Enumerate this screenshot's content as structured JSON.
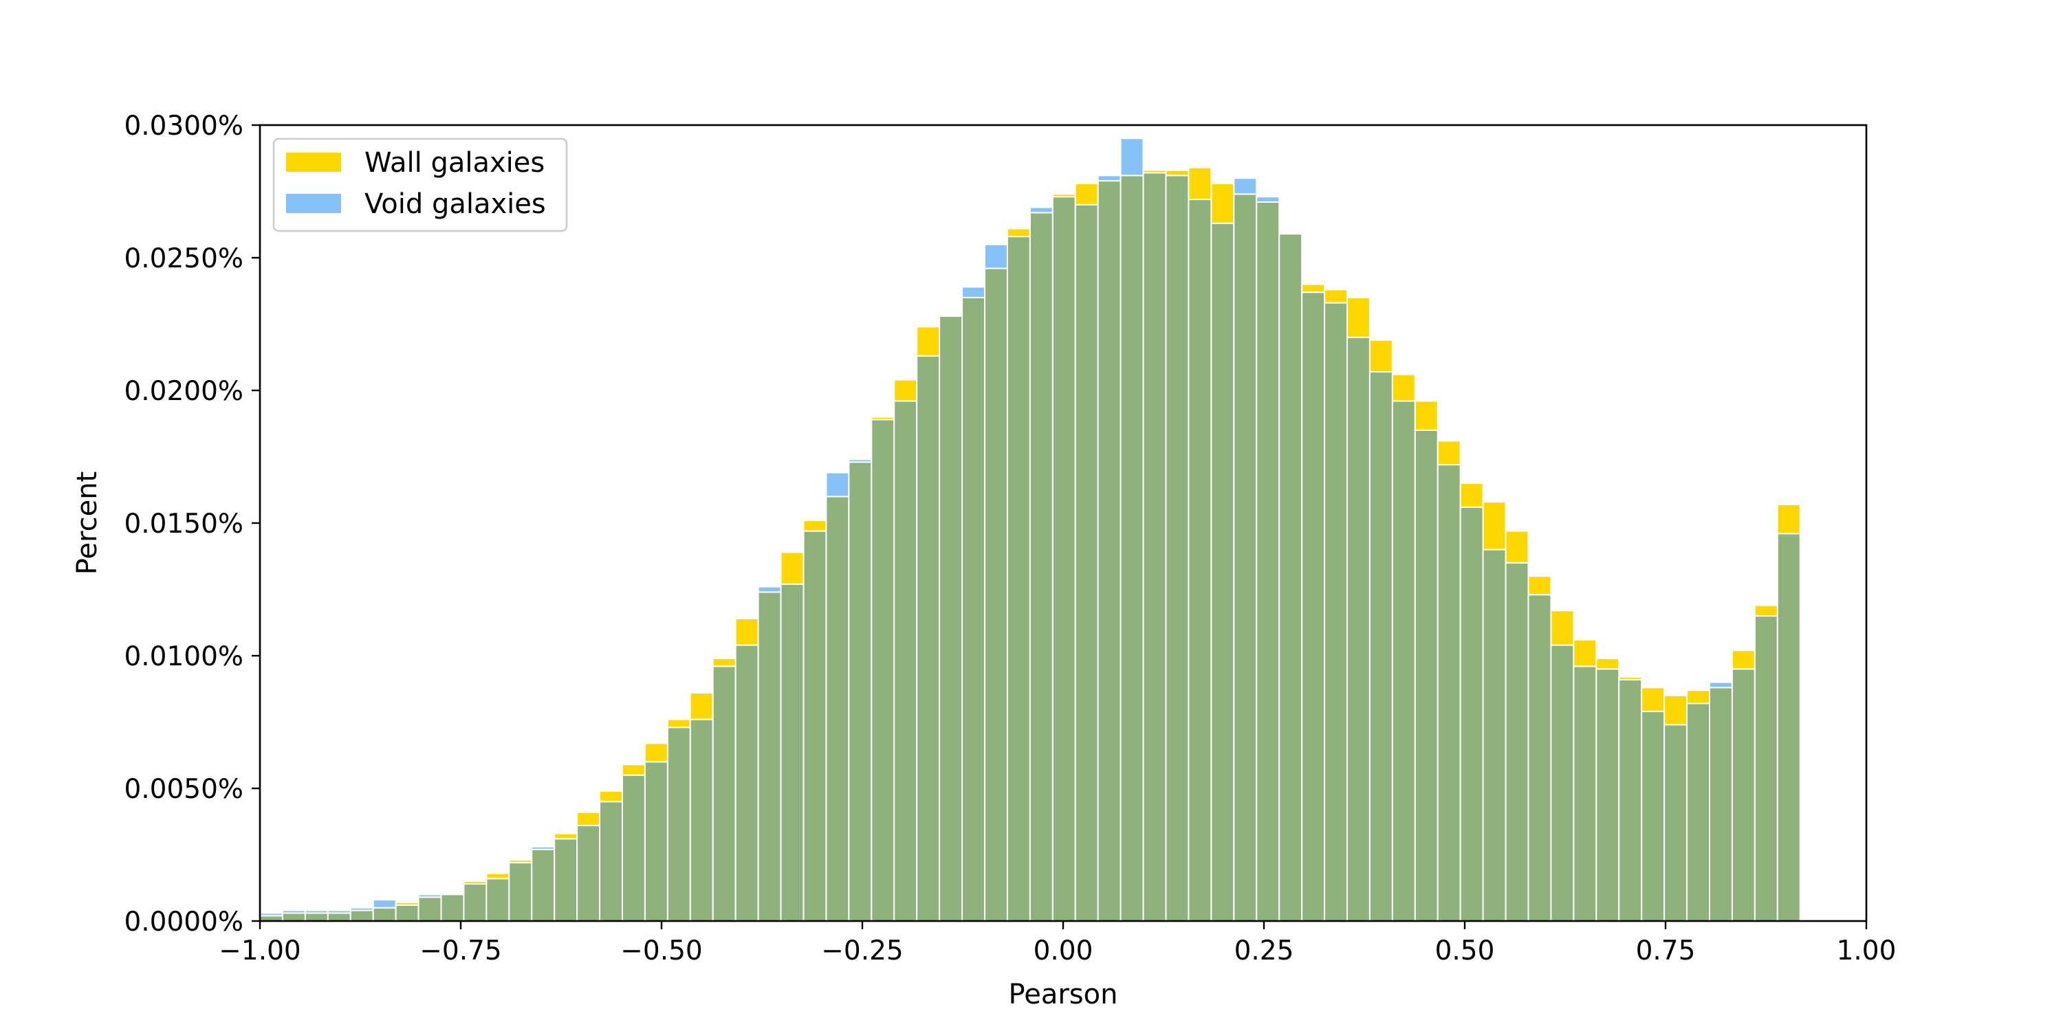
{
  "chart_data": {
    "type": "bar",
    "title": "",
    "xlabel": "Pearson",
    "ylabel": "Percent",
    "xlim": [
      -1.0,
      1.0
    ],
    "ylim": [
      0.0,
      0.0003
    ],
    "bin_width": 0.0282,
    "x_ticks": [
      -1.0,
      -0.75,
      -0.5,
      -0.25,
      0.0,
      0.25,
      0.5,
      0.75,
      1.0
    ],
    "x_tick_labels": [
      "−1.00",
      "−0.75",
      "−0.50",
      "−0.25",
      "0.00",
      "0.25",
      "0.50",
      "0.75",
      "1.00"
    ],
    "y_ticks": [
      0.0,
      5e-05,
      0.0001,
      0.00015,
      0.0002,
      0.00025,
      0.0003
    ],
    "y_tick_labels": [
      "0.0000%",
      "0.0050%",
      "0.0100%",
      "0.0150%",
      "0.0200%",
      "0.0250%",
      "0.0300%"
    ],
    "grid": false,
    "legend": {
      "placement": "upper-left"
    },
    "colors": {
      "wall": "#ffd700",
      "void": "#87c1fa",
      "overlap": "#8fb27c",
      "edge": "#ffffff"
    },
    "series": [
      {
        "name": "Wall galaxies",
        "values": [
          0.2,
          0.3,
          0.3,
          0.3,
          0.4,
          0.5,
          0.7,
          0.9,
          1.0,
          1.5,
          1.8,
          2.3,
          2.7,
          3.3,
          4.1,
          4.9,
          5.9,
          6.7,
          7.6,
          8.6,
          9.9,
          11.4,
          12.4,
          13.9,
          15.1,
          16.0,
          17.3,
          19.0,
          20.4,
          22.4,
          22.8,
          23.5,
          24.6,
          26.1,
          26.7,
          27.4,
          27.8,
          27.9,
          28.1,
          28.3,
          28.3,
          28.4,
          27.8,
          27.4,
          27.1,
          25.9,
          24.0,
          23.8,
          23.5,
          21.9,
          20.6,
          19.6,
          18.1,
          16.5,
          15.8,
          14.7,
          13.0,
          11.7,
          10.6,
          9.9,
          9.2,
          8.8,
          8.5,
          8.7,
          8.8,
          10.2,
          11.9,
          15.7
        ]
      },
      {
        "name": "Void galaxies",
        "values": [
          0.3,
          0.4,
          0.4,
          0.4,
          0.5,
          0.8,
          0.6,
          1.0,
          1.0,
          1.4,
          1.6,
          2.2,
          2.8,
          3.1,
          3.6,
          4.5,
          5.5,
          6.0,
          7.3,
          7.6,
          9.6,
          10.4,
          12.6,
          12.7,
          14.7,
          16.9,
          17.4,
          18.9,
          19.6,
          21.3,
          22.8,
          23.9,
          25.5,
          25.8,
          26.9,
          27.3,
          27.0,
          28.1,
          29.5,
          28.2,
          28.1,
          27.2,
          26.3,
          28.0,
          27.3,
          25.9,
          23.7,
          23.3,
          22.0,
          20.7,
          19.6,
          18.5,
          17.2,
          15.6,
          14.0,
          13.5,
          12.3,
          10.4,
          9.6,
          9.5,
          9.1,
          7.9,
          7.4,
          8.2,
          9.0,
          9.5,
          11.5,
          14.6
        ]
      }
    ],
    "values_unit": "1e-5 fraction"
  }
}
